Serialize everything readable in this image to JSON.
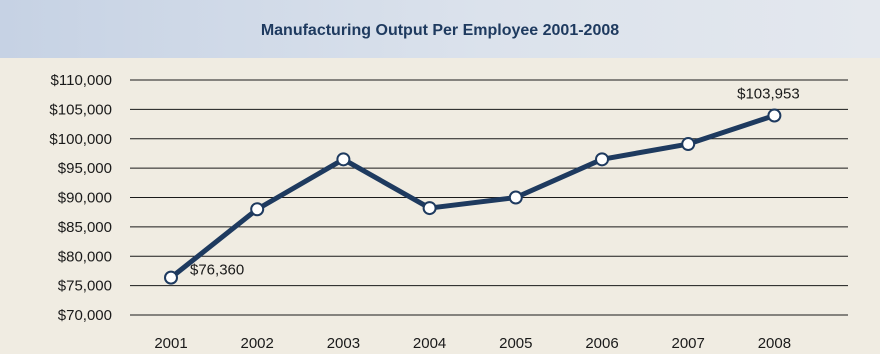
{
  "chart_data": {
    "type": "line",
    "title": "Manufacturing Output Per Employee 2001-2008",
    "xlabel": "",
    "ylabel": "",
    "categories": [
      "2001",
      "2002",
      "2003",
      "2004",
      "2005",
      "2006",
      "2007",
      "2008"
    ],
    "series": [
      {
        "values": [
          76360,
          88000,
          96500,
          88200,
          90000,
          96500,
          99100,
          103953
        ]
      }
    ],
    "ylim": [
      70000,
      110000
    ],
    "yticks": [
      70000,
      75000,
      80000,
      85000,
      90000,
      95000,
      100000,
      105000,
      110000
    ],
    "ytick_labels": [
      "$70,000",
      "$75,000",
      "$80,000",
      "$85,000",
      "$90,000",
      "$95,000",
      "$100,000",
      "$105,000",
      "$110,000"
    ],
    "data_labels": [
      {
        "index": 0,
        "text": "$76,360",
        "placement": "right"
      },
      {
        "index": 7,
        "text": "$103,953",
        "placement": "above"
      }
    ],
    "grid": true,
    "legend": "none",
    "colors": {
      "line": "#1e3a5f",
      "marker_fill": "#ffffff",
      "grid": "#1a1a1a",
      "background": "#f0ece2",
      "header_start": "#c6d2e4",
      "header_end": "#e4e8ee",
      "title": "#1e3a5f"
    }
  }
}
